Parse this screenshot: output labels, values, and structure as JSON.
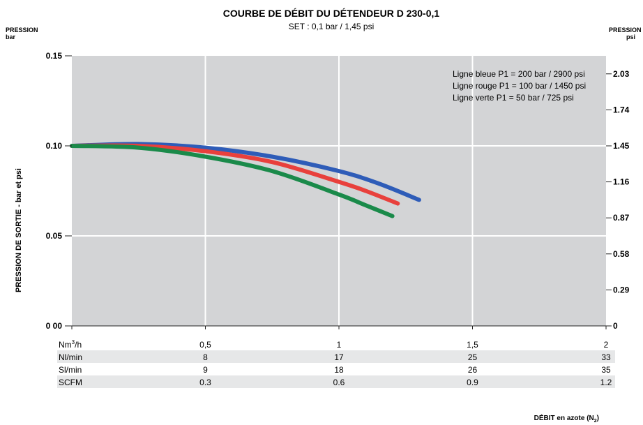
{
  "chart_data": {
    "type": "line",
    "title": "COURBE DE DÉBIT DU DÉTENDEUR D 230-0,1",
    "subtitle": "SET : 0,1 bar / 1,45 psi",
    "left_axis_unit": {
      "name": "PRESSION",
      "unit": "bar"
    },
    "right_axis_unit": {
      "name": "PRESSION",
      "unit": "psi"
    },
    "ylabel": "PRESSION DE SORTIE - bar et psi",
    "xlabel_main": "DÉBIT en azote (N",
    "xlabel_sub": "2",
    "xlabel_end": ")",
    "xlim": [
      0,
      2
    ],
    "ylim": [
      0,
      0.15
    ],
    "y_left_ticks": [
      {
        "value": 0.15,
        "label": "0.15"
      },
      {
        "value": 0.1,
        "label": "0.10"
      },
      {
        "value": 0.05,
        "label": "0.05"
      },
      {
        "value": 0.0,
        "label": "0 00"
      }
    ],
    "y_right_ticks": [
      {
        "value": 0.14,
        "label": "2.03"
      },
      {
        "value": 0.12,
        "label": "1.74"
      },
      {
        "value": 0.1,
        "label": "1.45"
      },
      {
        "value": 0.08,
        "label": "1.16"
      },
      {
        "value": 0.06,
        "label": "0.87"
      },
      {
        "value": 0.04,
        "label": "0.58"
      },
      {
        "value": 0.02,
        "label": "0.29"
      },
      {
        "value": 0.0,
        "label": "0"
      }
    ],
    "x_gridlines": [
      0.5,
      1,
      1.5
    ],
    "grid": true,
    "legend_position": "top-right",
    "legend_lines": [
      "Ligne bleue P1 = 200 bar / 2900 psi",
      "Ligne rouge P1 = 100 bar / 1450 psi",
      "Ligne verte P1 = 50 bar / 725 psi"
    ],
    "series": [
      {
        "color": "#2e5cb8",
        "x": [
          0,
          0.25,
          0.5,
          0.75,
          1.0,
          1.15,
          1.3
        ],
        "y": [
          0.1,
          0.101,
          0.099,
          0.094,
          0.086,
          0.079,
          0.07
        ]
      },
      {
        "color": "#e8403c",
        "x": [
          0,
          0.25,
          0.5,
          0.75,
          1.0,
          1.1,
          1.22
        ],
        "y": [
          0.1,
          0.1,
          0.097,
          0.091,
          0.08,
          0.075,
          0.068
        ]
      },
      {
        "color": "#1a8a4a",
        "x": [
          0,
          0.25,
          0.5,
          0.75,
          1.0,
          1.1,
          1.2
        ],
        "y": [
          0.1,
          0.099,
          0.094,
          0.086,
          0.073,
          0.067,
          0.061
        ]
      }
    ],
    "table": {
      "rows": [
        {
          "label": "Nm",
          "label_sup": "3",
          "label_end": "/h",
          "values": [
            "0,5",
            "1",
            "1,5",
            "2"
          ],
          "shaded": false
        },
        {
          "label": "Nl/min",
          "values": [
            "8",
            "17",
            "25",
            "33"
          ],
          "shaded": true
        },
        {
          "label": "Sl/min",
          "values": [
            "9",
            "18",
            "26",
            "35"
          ],
          "shaded": false
        },
        {
          "label": "SCFM",
          "values": [
            "0.3",
            "0.6",
            "0.9",
            "1.2"
          ],
          "shaded": true
        }
      ]
    },
    "colors": {
      "plot_bg": "#d3d4d6",
      "grid": "#ffffff",
      "row_shade": "#e6e7e8"
    }
  }
}
